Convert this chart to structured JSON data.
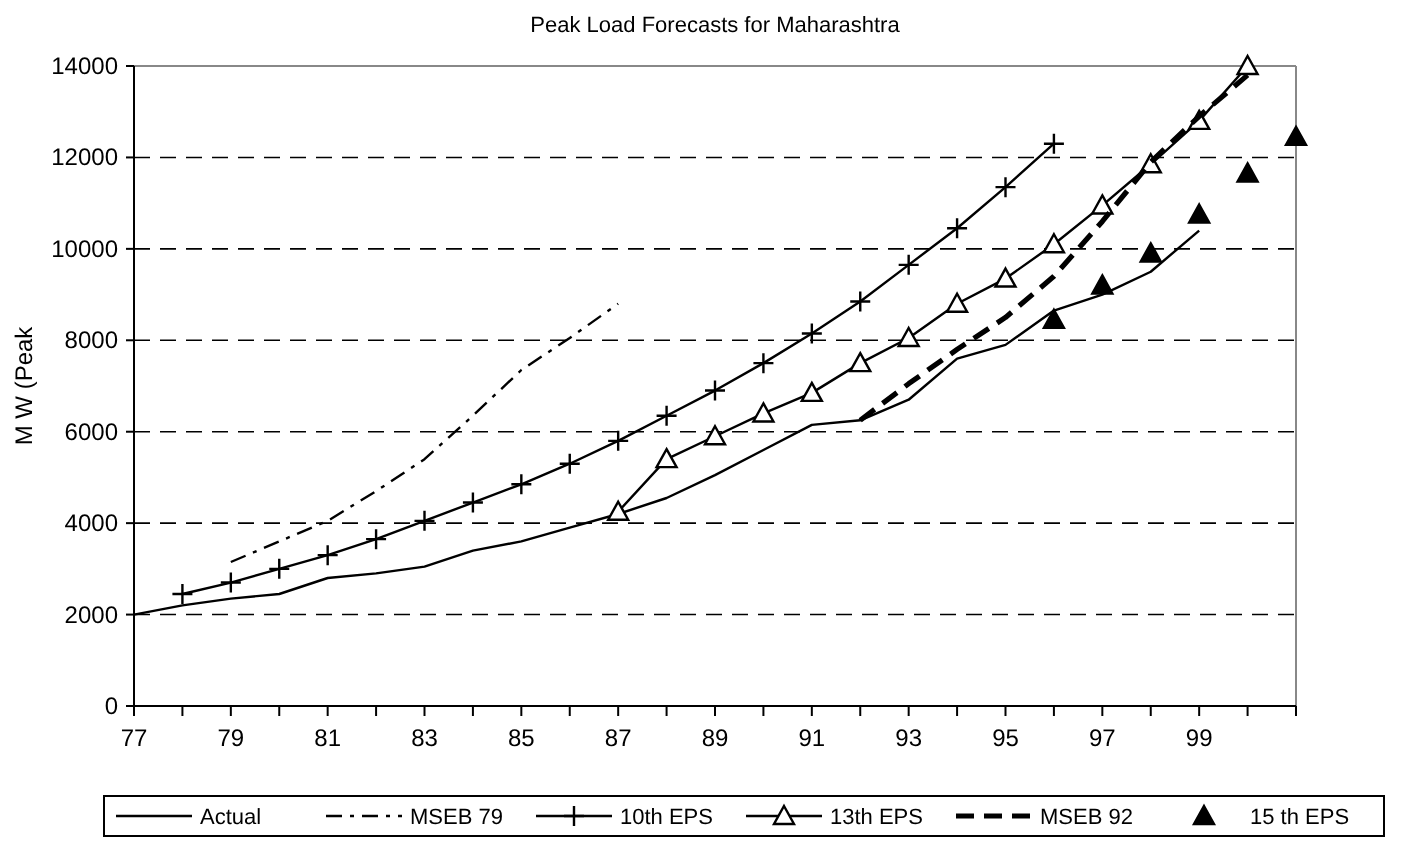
{
  "chart_data": {
    "type": "line",
    "title": "Peak Load Forecasts for Maharashtra",
    "ylabel": "M W (Peak",
    "xlim": [
      77,
      101
    ],
    "xticks": [
      77,
      {
        "value": 78,
        "label": null
      },
      79,
      {
        "value": 80,
        "label": null
      },
      81,
      {
        "value": 82,
        "label": null
      },
      83,
      {
        "value": 84,
        "label": null
      },
      85,
      {
        "value": 86,
        "label": null
      },
      87,
      {
        "value": 88,
        "label": null
      },
      89,
      {
        "value": 90,
        "label": null
      },
      91,
      {
        "value": 92,
        "label": null
      },
      93,
      {
        "value": 94,
        "label": null
      },
      95,
      {
        "value": 96,
        "label": null
      },
      97,
      {
        "value": 98,
        "label": null
      },
      99,
      {
        "value": 100,
        "label": null
      },
      {
        "value": 101,
        "label": null
      }
    ],
    "ylim": [
      0,
      14000
    ],
    "yticks": [
      0,
      2000,
      4000,
      6000,
      8000,
      10000,
      12000,
      14000
    ],
    "grid": "y",
    "legend": "bottom",
    "series": [
      {
        "name": "Actual",
        "color": "#000000",
        "line_style": "solid",
        "marker": "none",
        "x": [
          77,
          78,
          79,
          80,
          81,
          82,
          83,
          84,
          85,
          86,
          87,
          88,
          89,
          90,
          91,
          92,
          93,
          94,
          95,
          96,
          97,
          98,
          99
        ],
        "values": [
          2000,
          2200,
          2350,
          2450,
          2800,
          2900,
          3050,
          3400,
          3600,
          3900,
          4200,
          4550,
          5050,
          5600,
          6150,
          6250,
          6700,
          7600,
          7900,
          8650,
          9000,
          9500,
          10400
        ]
      },
      {
        "name": "MSEB 79",
        "color": "#000000",
        "line_style": "dashdot",
        "marker": "none",
        "x": [
          79,
          80,
          81,
          82,
          83,
          84,
          85,
          86,
          87
        ],
        "values": [
          3150,
          3600,
          4050,
          4700,
          5400,
          6350,
          7350,
          8050,
          8800
        ]
      },
      {
        "name": "10th EPS",
        "color": "#000000",
        "line_style": "solid",
        "marker": "cross",
        "x": [
          78,
          79,
          80,
          81,
          82,
          83,
          84,
          85,
          86,
          87,
          88,
          89,
          90,
          91,
          92,
          93,
          94,
          95,
          96
        ],
        "values": [
          2450,
          2700,
          3000,
          3300,
          3650,
          4050,
          4450,
          4850,
          5300,
          5800,
          6350,
          6900,
          7500,
          8150,
          8850,
          9650,
          10450,
          11350,
          12300
        ]
      },
      {
        "name": "13th EPS",
        "color": "#000000",
        "line_style": "solid",
        "marker": "triangle",
        "x": [
          87,
          88,
          89,
          90,
          91,
          92,
          93,
          94,
          95,
          96,
          97,
          98,
          99,
          100
        ],
        "values": [
          4250,
          5400,
          5900,
          6400,
          6850,
          7500,
          8050,
          8800,
          9350,
          10100,
          10950,
          11850,
          12800,
          14000
        ]
      },
      {
        "name": "MSEB 92",
        "color": "#000000",
        "line_style": "dashed",
        "marker": "none",
        "x": [
          92,
          93,
          94,
          95,
          96,
          97,
          98,
          99,
          100
        ],
        "values": [
          6250,
          7050,
          7800,
          8500,
          9400,
          10600,
          11900,
          12900,
          13800
        ]
      },
      {
        "name": "15 th EPS",
        "type": "scatter",
        "color": "#000000",
        "marker": "triangle",
        "x": [
          96,
          97,
          98,
          99,
          100,
          101
        ],
        "values": [
          8450,
          9200,
          9900,
          10750,
          11650,
          12450
        ]
      }
    ]
  }
}
